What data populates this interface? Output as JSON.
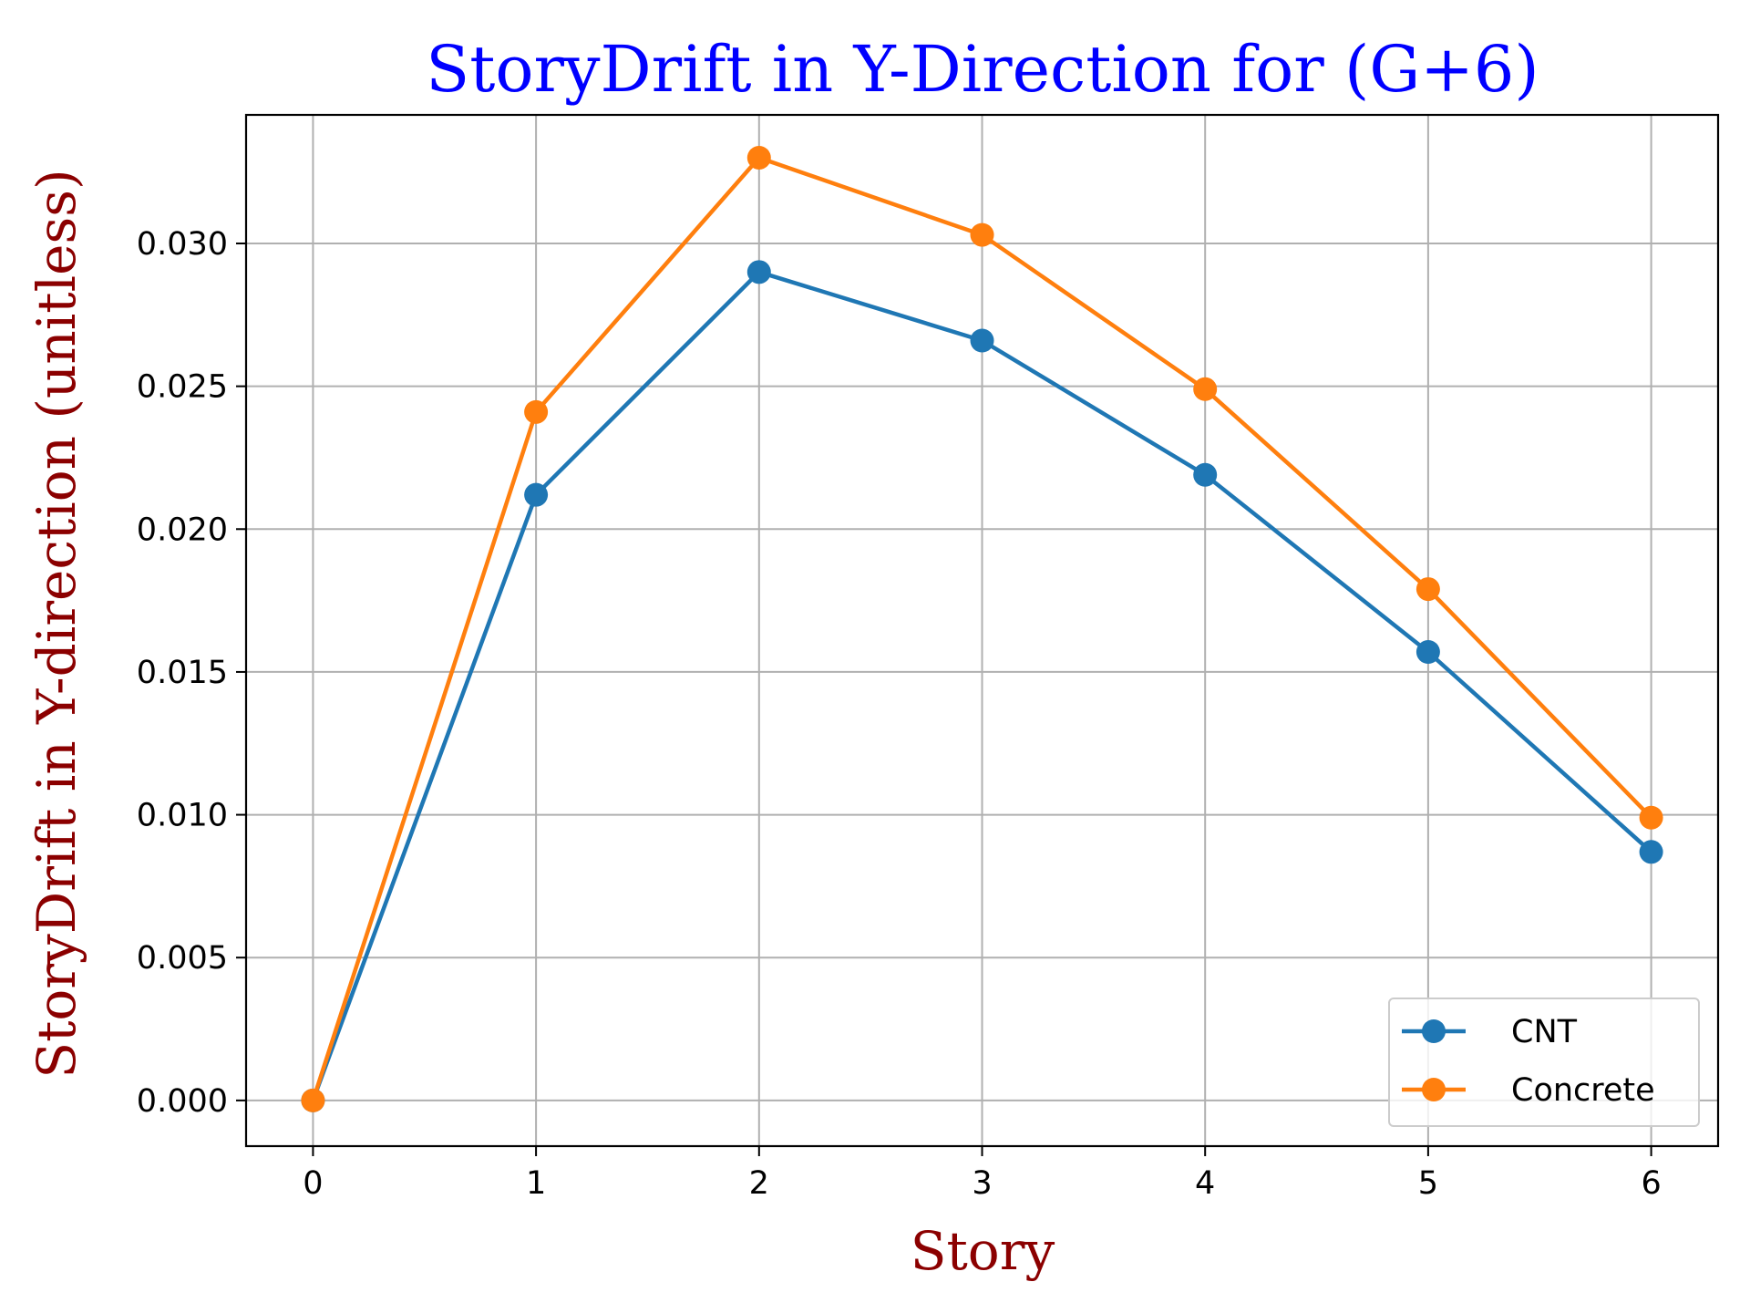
{
  "chart_data": {
    "type": "line",
    "title": "StoryDrift in Y-Direction for (G+6)",
    "xlabel": "Story",
    "ylabel": "StoryDrift in Y-direction (unitless)",
    "x": [
      0,
      1,
      2,
      3,
      4,
      5,
      6
    ],
    "xticks": [
      "0",
      "1",
      "2",
      "3",
      "4",
      "5",
      "6"
    ],
    "yticks": [
      "0.000",
      "0.005",
      "0.010",
      "0.015",
      "0.020",
      "0.025",
      "0.030"
    ],
    "xlim": [
      -0.3,
      6.3
    ],
    "ylim": [
      -0.0016,
      0.0345
    ],
    "grid": true,
    "legend_position": "lower-right",
    "series": [
      {
        "name": "CNT",
        "color": "#1f77b4",
        "values": [
          0.0,
          0.0212,
          0.029,
          0.0266,
          0.0219,
          0.0157,
          0.0087
        ]
      },
      {
        "name": "Concrete",
        "color": "#ff7f0e",
        "values": [
          0.0,
          0.0241,
          0.033,
          0.0303,
          0.0249,
          0.0179,
          0.0099
        ]
      }
    ],
    "title_color": "#0000ff",
    "label_color": "#8b0000"
  }
}
